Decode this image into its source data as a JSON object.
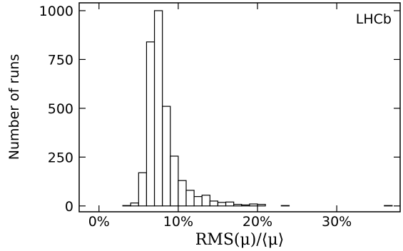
{
  "chart_data": {
    "type": "bar",
    "title": "",
    "annotation": "LHCb",
    "xlabel": "RMS(μ)/⟨μ⟩",
    "ylabel": "Number of runs",
    "xlim": [
      -0.025,
      0.38
    ],
    "ylim": [
      -30,
      1040
    ],
    "x_ticks": [
      {
        "value": 0.0,
        "label": "0%"
      },
      {
        "value": 0.1,
        "label": "10%"
      },
      {
        "value": 0.2,
        "label": "20%"
      },
      {
        "value": 0.3,
        "label": "30%"
      }
    ],
    "y_ticks": [
      {
        "value": 0,
        "label": "0"
      },
      {
        "value": 250,
        "label": "250"
      },
      {
        "value": 500,
        "label": "500"
      },
      {
        "value": 750,
        "label": "750"
      },
      {
        "value": 1000,
        "label": "1000"
      }
    ],
    "bin_width": 0.01,
    "bins": [
      {
        "x": 0.03,
        "count": 2
      },
      {
        "x": 0.04,
        "count": 15
      },
      {
        "x": 0.05,
        "count": 170
      },
      {
        "x": 0.06,
        "count": 840
      },
      {
        "x": 0.07,
        "count": 1000
      },
      {
        "x": 0.08,
        "count": 510
      },
      {
        "x": 0.09,
        "count": 255
      },
      {
        "x": 0.1,
        "count": 130
      },
      {
        "x": 0.11,
        "count": 80
      },
      {
        "x": 0.12,
        "count": 48
      },
      {
        "x": 0.13,
        "count": 55
      },
      {
        "x": 0.14,
        "count": 25
      },
      {
        "x": 0.15,
        "count": 18
      },
      {
        "x": 0.16,
        "count": 20
      },
      {
        "x": 0.17,
        "count": 8
      },
      {
        "x": 0.18,
        "count": 5
      },
      {
        "x": 0.19,
        "count": 10
      },
      {
        "x": 0.2,
        "count": 8
      },
      {
        "x": 0.23,
        "count": 2
      },
      {
        "x": 0.36,
        "count": 2
      }
    ],
    "grid": false,
    "colors": {
      "bar_fill": "#ffffff",
      "bar_stroke": "#000000",
      "axis": "#000000"
    }
  }
}
